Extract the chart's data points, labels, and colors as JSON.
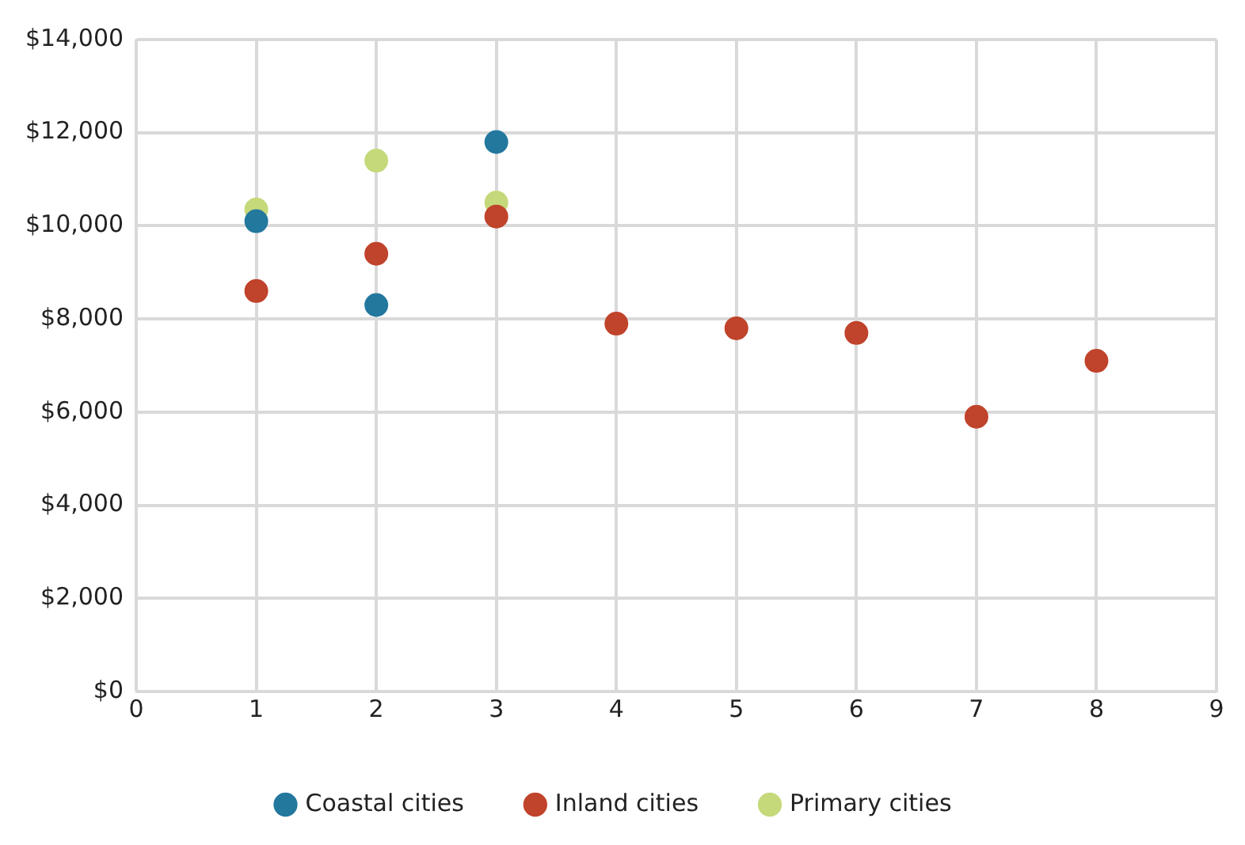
{
  "chart_data": {
    "type": "scatter",
    "xlim": [
      0,
      9
    ],
    "xticks": [
      0,
      1,
      2,
      3,
      4,
      5,
      6,
      7,
      8,
      9
    ],
    "ylim": [
      0,
      14000
    ],
    "yticks": [
      {
        "value": 0,
        "label": "$0"
      },
      {
        "value": 2000,
        "label": "$2,000"
      },
      {
        "value": 4000,
        "label": "$4,000"
      },
      {
        "value": 6000,
        "label": "$6,000"
      },
      {
        "value": 8000,
        "label": "$8,000"
      },
      {
        "value": 10000,
        "label": "$10,000"
      },
      {
        "value": 12000,
        "label": "$12,000"
      },
      {
        "value": 14000,
        "label": "$14,000"
      }
    ],
    "grid": true,
    "legend": "bottom",
    "marker": "circle",
    "series": [
      {
        "name": "Coastal cities",
        "color": "#23789e",
        "x": [
          1,
          2,
          3
        ],
        "values": [
          10100,
          8300,
          11800
        ]
      },
      {
        "name": "Inland cities",
        "color": "#c0432b",
        "x": [
          1,
          2,
          3,
          4,
          5,
          6,
          7,
          8
        ],
        "values": [
          8600,
          9400,
          10200,
          7900,
          7800,
          7700,
          5900,
          7100
        ]
      },
      {
        "name": "Primary cities",
        "color": "#c5d97b",
        "x": [
          1,
          2,
          3
        ],
        "values": [
          10350,
          11400,
          10500
        ]
      }
    ]
  }
}
